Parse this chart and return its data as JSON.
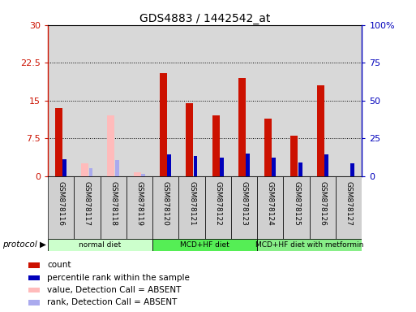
{
  "title": "GDS4883 / 1442542_at",
  "samples": [
    "GSM878116",
    "GSM878117",
    "GSM878118",
    "GSM878119",
    "GSM878120",
    "GSM878121",
    "GSM878122",
    "GSM878123",
    "GSM878124",
    "GSM878125",
    "GSM878126",
    "GSM878127"
  ],
  "count_values": [
    13.5,
    0,
    0,
    0,
    20.5,
    14.5,
    12.0,
    19.5,
    11.5,
    8.0,
    18.0,
    0
  ],
  "count_absent": [
    0,
    2.5,
    12.0,
    0.8,
    0,
    0,
    0,
    0,
    0,
    0,
    0,
    0
  ],
  "percentile_values": [
    11.0,
    0,
    0,
    0,
    14.5,
    13.5,
    12.5,
    15.0,
    12.5,
    9.0,
    14.5,
    8.5
  ],
  "percentile_absent": [
    0,
    5.5,
    10.5,
    1.5,
    0,
    0,
    0,
    0,
    0,
    0,
    0,
    0
  ],
  "protocols": [
    {
      "label": "normal diet",
      "start": 0,
      "end": 4
    },
    {
      "label": "MCD+HF diet",
      "start": 4,
      "end": 8
    },
    {
      "label": "MCD+HF diet with metformin",
      "start": 8,
      "end": 12
    }
  ],
  "proto_colors": [
    "#ccffcc",
    "#55ee55",
    "#88ee88"
  ],
  "ylim_left": [
    0,
    30
  ],
  "ylim_right": [
    0,
    100
  ],
  "yticks_left": [
    0,
    7.5,
    15,
    22.5,
    30
  ],
  "yticks_right": [
    0,
    25,
    50,
    75,
    100
  ],
  "ytick_labels_left": [
    "0",
    "7.5",
    "15",
    "22.5",
    "30"
  ],
  "ytick_labels_right": [
    "0",
    "25",
    "50",
    "75",
    "100%"
  ],
  "color_count": "#cc1100",
  "color_percentile": "#0000bb",
  "color_count_absent": "#ffbbbb",
  "color_percentile_absent": "#aaaaee",
  "legend_items": [
    {
      "label": "count",
      "color": "#cc1100"
    },
    {
      "label": "percentile rank within the sample",
      "color": "#0000bb"
    },
    {
      "label": "value, Detection Call = ABSENT",
      "color": "#ffbbbb"
    },
    {
      "label": "rank, Detection Call = ABSENT",
      "color": "#aaaaee"
    }
  ],
  "bar_width": 0.28,
  "pct_bar_width": 0.15,
  "protocol_label": "protocol"
}
